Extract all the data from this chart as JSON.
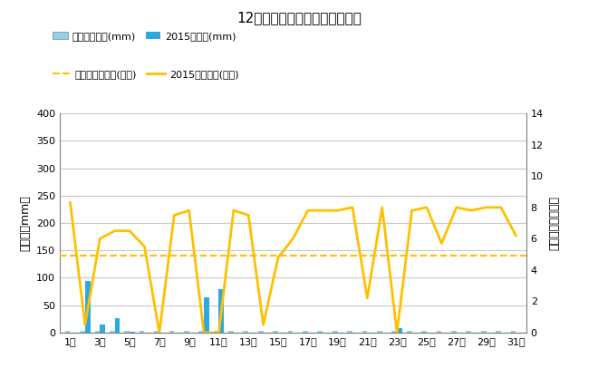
{
  "title": "12月降水量・日照時間（日別）",
  "days": [
    1,
    2,
    3,
    4,
    5,
    6,
    7,
    8,
    9,
    10,
    11,
    12,
    13,
    14,
    15,
    16,
    17,
    18,
    19,
    20,
    21,
    22,
    23,
    24,
    25,
    26,
    27,
    28,
    29,
    30,
    31
  ],
  "precipitation_2015": [
    0,
    95,
    15,
    27,
    2,
    0,
    0,
    0,
    0,
    65,
    80,
    0,
    0,
    0,
    0,
    0,
    0,
    0,
    0,
    0,
    0,
    0,
    8,
    0,
    0,
    0,
    0,
    0,
    0,
    0,
    0
  ],
  "precipitation_avg": [
    4,
    4,
    4,
    4,
    4,
    4,
    4,
    4,
    4,
    4,
    4,
    4,
    4,
    4,
    4,
    4,
    4,
    4,
    4,
    4,
    4,
    4,
    4,
    4,
    4,
    4,
    4,
    4,
    4,
    4,
    4
  ],
  "sunshine_2015": [
    8.3,
    0.5,
    6.0,
    6.5,
    6.5,
    5.5,
    0.0,
    7.5,
    7.8,
    0.0,
    0.0,
    7.8,
    7.5,
    0.5,
    4.8,
    6.0,
    7.8,
    7.8,
    7.8,
    8.0,
    2.2,
    8.0,
    0.0,
    7.8,
    8.0,
    5.7,
    8.0,
    7.8,
    8.0,
    8.0,
    6.2
  ],
  "sunshine_avg": 4.9,
  "xtick_labels": [
    "1日",
    "3日",
    "5日",
    "7日",
    "9日",
    "11日",
    "13日",
    "15日",
    "17日",
    "19日",
    "21日",
    "23日",
    "25日",
    "27日",
    "29日",
    "31日"
  ],
  "xtick_positions": [
    1,
    3,
    5,
    7,
    9,
    11,
    13,
    15,
    17,
    19,
    21,
    23,
    25,
    27,
    29,
    31
  ],
  "ylim_left": [
    0,
    400
  ],
  "ylim_right": [
    0,
    14
  ],
  "yticks_left": [
    0,
    50,
    100,
    150,
    200,
    250,
    300,
    350,
    400
  ],
  "yticks_right": [
    0,
    2,
    4,
    6,
    8,
    10,
    12,
    14
  ],
  "bar_color": "#29ABE2",
  "bar_avg_color": "#92D0E8",
  "line_2015_color": "#FFC000",
  "line_avg_color": "#FFC000",
  "ylabel_left": "降水量（mm）",
  "ylabel_right": "日照時間（時間）",
  "legend_labels": [
    "降水量平年値(mm)",
    "2015降水量(mm)",
    "日照時間平年値(時間)",
    "2015日照時間(時間)"
  ],
  "bg_color": "#FFFFFF",
  "grid_color": "#C8C8C8"
}
